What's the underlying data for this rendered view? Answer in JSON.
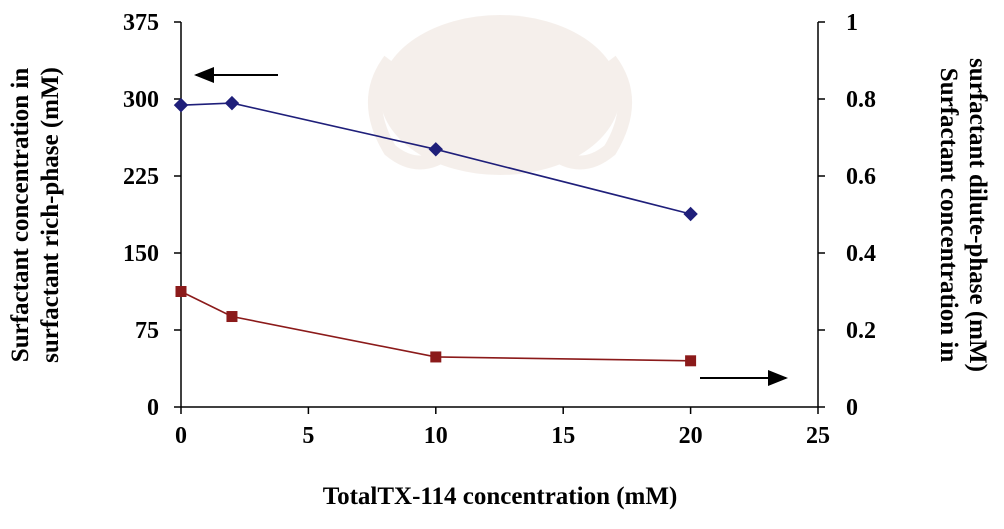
{
  "chart_data": {
    "type": "line",
    "xlabel": "TotalTX-114 concentration (mM)",
    "ylabel_left": [
      "Surfactant concentration in",
      "surfactant rich-phase (mM)"
    ],
    "ylabel_right": [
      "Surfactant concentration in",
      "surfactant dilute-phase (mM)"
    ],
    "xlim": [
      0,
      25
    ],
    "ylim_left": [
      0,
      375
    ],
    "ylim_right": [
      0,
      1
    ],
    "x_ticks": [
      "0",
      "5",
      "10",
      "15",
      "20",
      "25"
    ],
    "y_left_ticks": [
      "0",
      "75",
      "150",
      "225",
      "300",
      "375"
    ],
    "y_right_ticks": [
      "0",
      "0.2",
      "0.4",
      "0.6",
      "0.8",
      "1"
    ],
    "grid": false,
    "series": [
      {
        "axis": "left",
        "marker": "diamond",
        "color": "#1f1f7a",
        "x": [
          0,
          2,
          10,
          20
        ],
        "y": [
          294,
          296,
          251,
          188
        ]
      },
      {
        "axis": "right",
        "marker": "square",
        "color": "#8b1a1a",
        "x": [
          0,
          2,
          10,
          20
        ],
        "y": [
          0.3,
          0.235,
          0.13,
          0.12
        ]
      }
    ],
    "annotations": [
      {
        "type": "arrow",
        "direction": "left",
        "points_to": "left axis"
      },
      {
        "type": "arrow",
        "direction": "right",
        "points_to": "right axis"
      }
    ]
  }
}
